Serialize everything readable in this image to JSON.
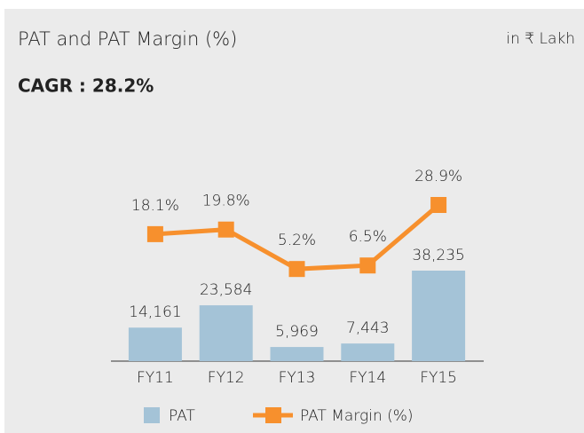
{
  "chart_data": {
    "type": "bar",
    "title": "PAT and PAT Margin (%)",
    "unit": "in ₹ Lakh",
    "annotation": "CAGR : 28.2%",
    "categories": [
      "FY11",
      "FY12",
      "FY13",
      "FY14",
      "FY15"
    ],
    "series": [
      {
        "name": "PAT",
        "type": "bar",
        "color": "#a4c3d7",
        "values": [
          14161,
          23584,
          5969,
          7443,
          38235
        ],
        "value_labels": [
          "14,161",
          "23,584",
          "5,969",
          "7,443",
          "38,235"
        ]
      },
      {
        "name": "PAT Margin (%)",
        "type": "line",
        "axis": "y2",
        "color": "#f7902d",
        "values": [
          18.1,
          19.8,
          5.2,
          6.5,
          28.9
        ],
        "value_labels": [
          "18.1%",
          "19.8%",
          "5.2%",
          "6.5%",
          "28.9%"
        ]
      }
    ]
  }
}
